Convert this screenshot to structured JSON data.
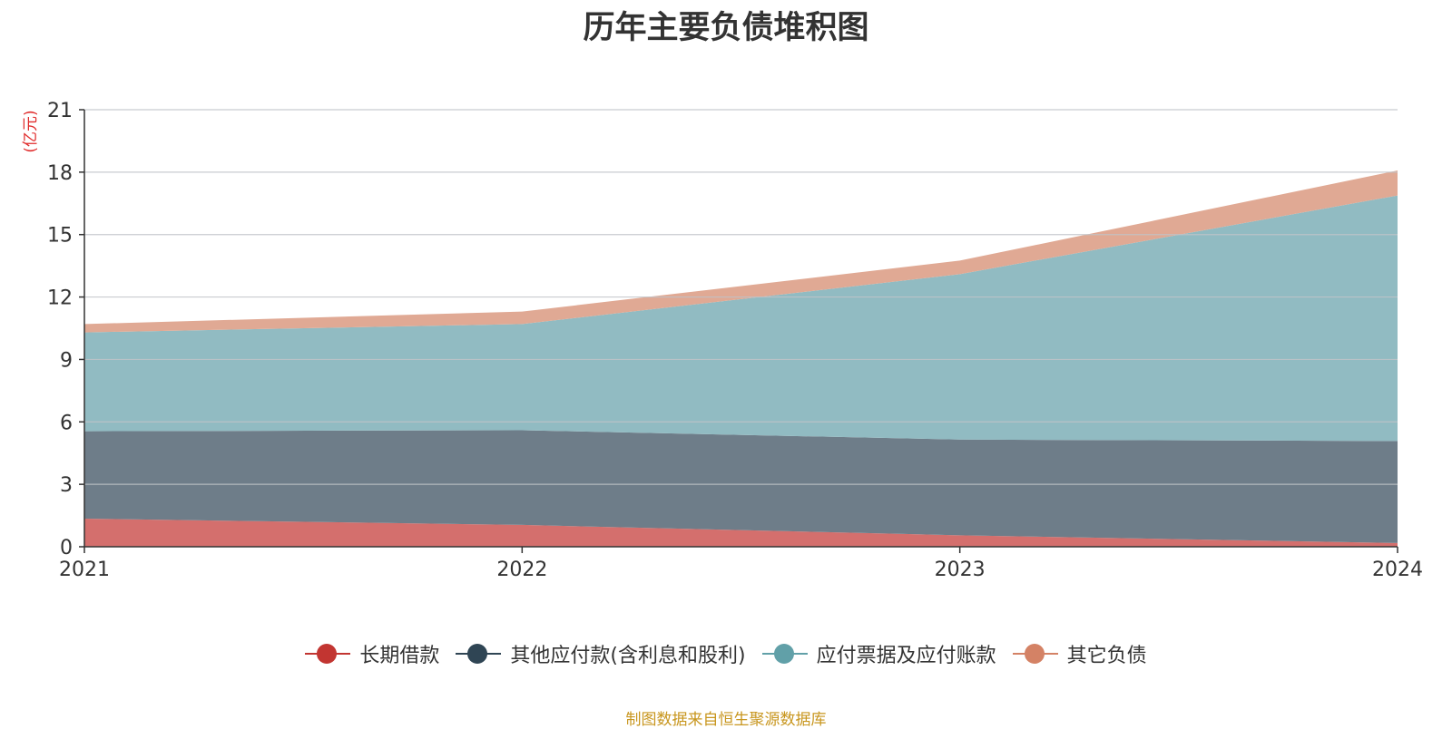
{
  "chart_data": {
    "type": "area",
    "stacked": true,
    "title": "历年主要负债堆积图",
    "ylabel": "(亿元)",
    "x": [
      "2021",
      "2022",
      "2023",
      "2024"
    ],
    "ylim": [
      0,
      21
    ],
    "yticks": [
      0,
      3,
      6,
      9,
      12,
      15,
      18,
      21
    ],
    "grid": true,
    "legend_position": "bottom",
    "series": [
      {
        "name": "长期借款",
        "values": [
          1.35,
          1.05,
          0.55,
          0.18
        ],
        "color": "#c23531",
        "fill": "#d46f6d"
      },
      {
        "name": "其他应付款(含利息和股利)",
        "values": [
          4.2,
          4.55,
          4.6,
          4.9
        ],
        "color": "#2f4554",
        "fill": "#6e7d89"
      },
      {
        "name": "应付票据及应付账款",
        "values": [
          4.75,
          5.1,
          7.95,
          11.8
        ],
        "color": "#61a0a8",
        "fill": "#91bbc2"
      },
      {
        "name": "其它负债",
        "values": [
          0.4,
          0.6,
          0.65,
          1.2
        ],
        "color": "#d48265",
        "fill": "#e0a994"
      }
    ]
  },
  "source": "制图数据来自恒生聚源数据库"
}
